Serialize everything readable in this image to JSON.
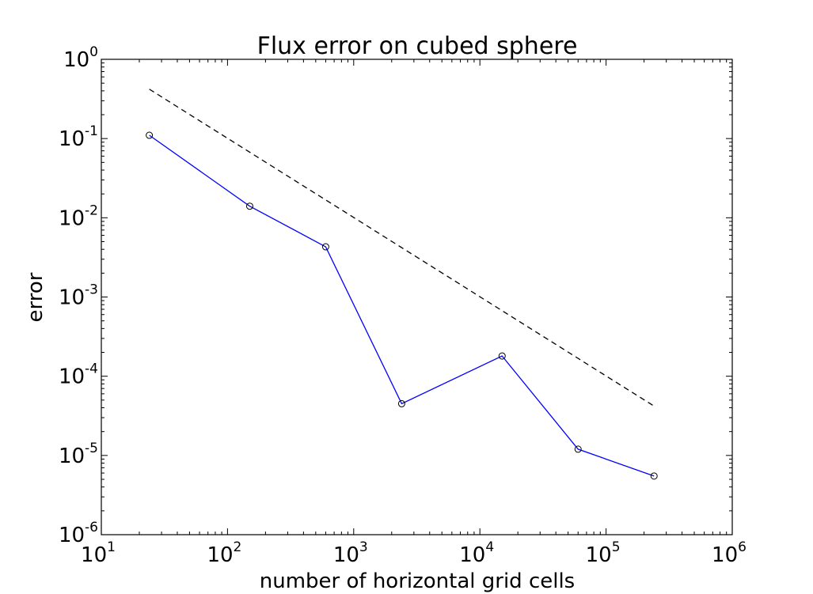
{
  "chart_data": {
    "type": "line",
    "title": "Flux error on cubed sphere",
    "xlabel": "number of horizontal grid cells",
    "ylabel": "error",
    "xscale": "log",
    "yscale": "log",
    "xlim": [
      10,
      1000000
    ],
    "ylim": [
      1e-06,
      1
    ],
    "grid": false,
    "legend": "none",
    "x_ticks": [
      {
        "base": "10",
        "exp": "1"
      },
      {
        "base": "10",
        "exp": "2"
      },
      {
        "base": "10",
        "exp": "3"
      },
      {
        "base": "10",
        "exp": "4"
      },
      {
        "base": "10",
        "exp": "5"
      },
      {
        "base": "10",
        "exp": "6"
      }
    ],
    "y_ticks": [
      {
        "base": "10",
        "exp": "0"
      },
      {
        "base": "10",
        "exp": "-1"
      },
      {
        "base": "10",
        "exp": "-2"
      },
      {
        "base": "10",
        "exp": "-3"
      },
      {
        "base": "10",
        "exp": "-4"
      },
      {
        "base": "10",
        "exp": "-5"
      },
      {
        "base": "10",
        "exp": "-6"
      }
    ],
    "series": [
      {
        "style": "solid",
        "marker": "circle",
        "color": "#0000ff",
        "marker_color": "#000000",
        "x": [
          24,
          150,
          600,
          2400,
          15000,
          60000,
          240000
        ],
        "y": [
          0.11,
          0.014,
          0.0043,
          4.5e-05,
          0.00018,
          1.2e-05,
          5.5e-06
        ]
      },
      {
        "style": "dashed",
        "marker": "none",
        "color": "#000000",
        "x": [
          24,
          240000
        ],
        "y": [
          0.42,
          4.2e-05
        ]
      }
    ]
  }
}
